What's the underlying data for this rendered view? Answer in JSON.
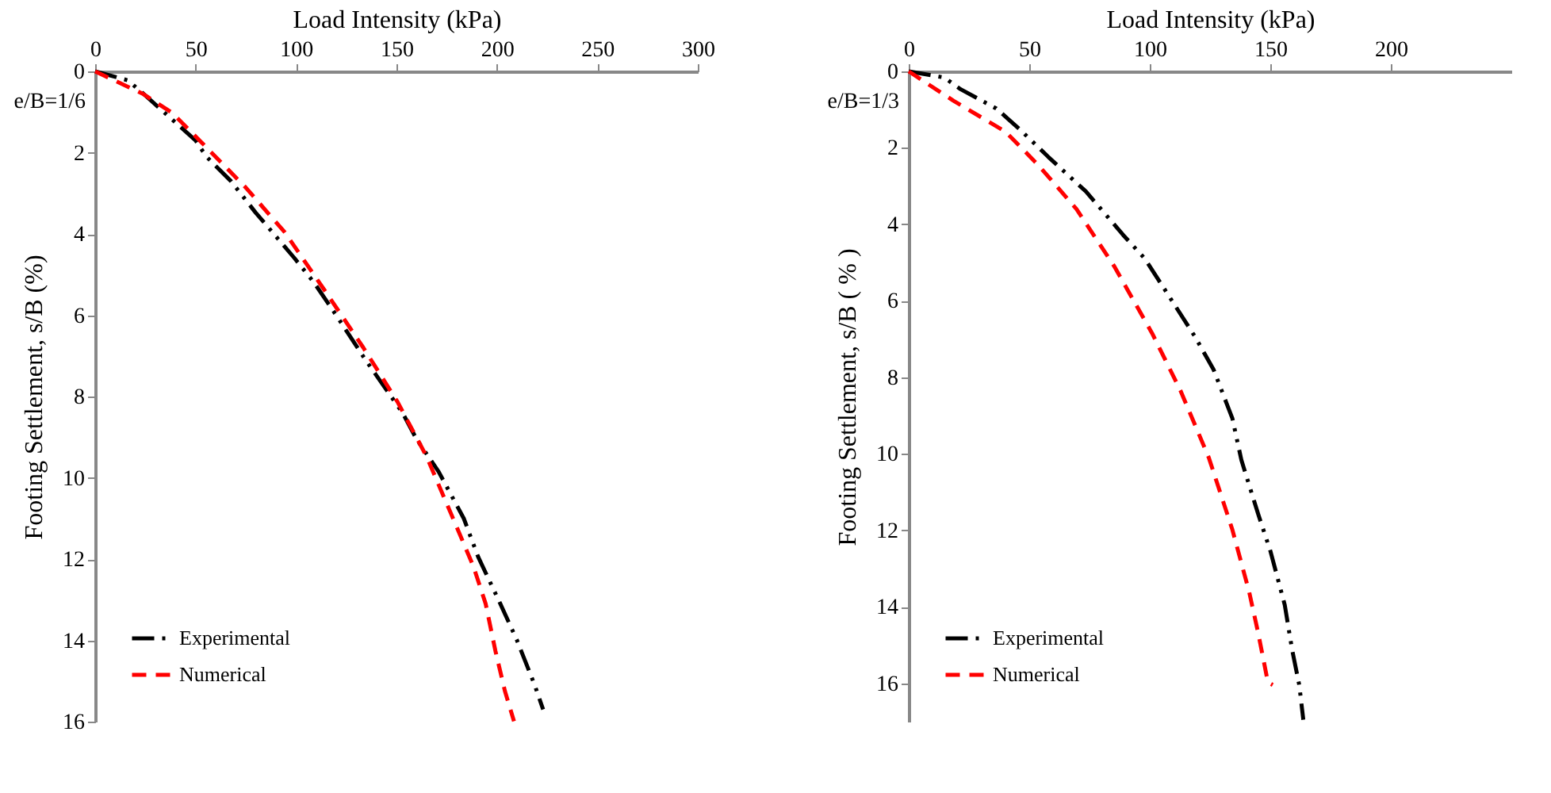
{
  "chart_data": [
    {
      "type": "line",
      "xlabel": "Load Intensity (kPa)",
      "ylabel": "Footing Settlement, s/B (%)",
      "annotations": [
        "e/B=1/6"
      ],
      "xlim": [
        0,
        300
      ],
      "xticks": [
        0,
        50,
        100,
        150,
        200,
        250,
        300
      ],
      "ylim": [
        16,
        0
      ],
      "yticks": [
        0,
        2,
        4,
        6,
        8,
        10,
        12,
        14,
        16
      ],
      "legend": "bottom left",
      "grid": false,
      "series": [
        {
          "name": "Experimental",
          "color": "#000000",
          "line_style": "dashdot",
          "x": [
            0,
            16.3,
            24,
            38,
            50,
            55.4,
            67.6,
            79.8,
            99.3,
            109,
            120,
            134.6,
            153,
            160,
            171,
            183.5,
            190.7,
            201.7,
            210,
            218.8,
            223
          ],
          "values": [
            0,
            0.22,
            0.55,
            1.17,
            1.7,
            2.1,
            2.7,
            3.47,
            4.6,
            5.2,
            6,
            7.1,
            8.4,
            9.05,
            9.85,
            11,
            11.95,
            13.1,
            14,
            15.1,
            15.7
          ]
        },
        {
          "name": "Numerical",
          "color": "#ff0000",
          "line_style": "dashed",
          "x": [
            0,
            23.7,
            38.3,
            53,
            75,
            94.4,
            114,
            133.4,
            150.5,
            165,
            177.3,
            188.3,
            194.4,
            199.3,
            204,
            208.5
          ],
          "values": [
            0,
            0.55,
            1.02,
            1.75,
            2.86,
            3.96,
            5.37,
            6.79,
            8.13,
            9.48,
            10.9,
            12.18,
            13.1,
            14.27,
            15.25,
            15.99
          ]
        }
      ]
    },
    {
      "type": "line",
      "xlabel": "Load Intensity (kPa)",
      "ylabel": "Footing Settlement, s/B ( % )",
      "annotations": [
        "e/B=1/3"
      ],
      "xlim": [
        0,
        250
      ],
      "xticks": [
        0,
        50,
        100,
        150,
        200
      ],
      "ylim": [
        17,
        0
      ],
      "yticks": [
        0,
        2,
        4,
        6,
        8,
        10,
        12,
        14,
        16
      ],
      "legend": "bottom left",
      "grid": false,
      "series": [
        {
          "name": "Experimental",
          "color": "#000000",
          "line_style": "dashdot",
          "x": [
            0,
            14.7,
            21.6,
            36.3,
            46,
            57.8,
            73.5,
            89,
            98,
            106.9,
            118.6,
            126.5,
            134.3,
            138,
            145,
            150,
            156,
            159,
            162,
            163.7
          ],
          "values": [
            0,
            0.16,
            0.47,
            0.97,
            1.51,
            2.23,
            3.14,
            4.28,
            4.9,
            5.77,
            6.92,
            7.8,
            9.08,
            10.16,
            11.58,
            12.53,
            13.95,
            15.1,
            16.04,
            16.95
          ]
        },
        {
          "name": "Numerical",
          "color": "#ff0000",
          "line_style": "dashed",
          "x": [
            0,
            18.6,
            40.2,
            53.9,
            69.6,
            85.3,
            101,
            112.7,
            124.5,
            134.3,
            141.2,
            145,
            149,
            151
          ],
          "values": [
            0,
            0.77,
            1.58,
            2.46,
            3.6,
            5.1,
            6.85,
            8.34,
            10.1,
            11.99,
            13.6,
            14.69,
            15.97,
            16.04
          ]
        }
      ]
    }
  ]
}
